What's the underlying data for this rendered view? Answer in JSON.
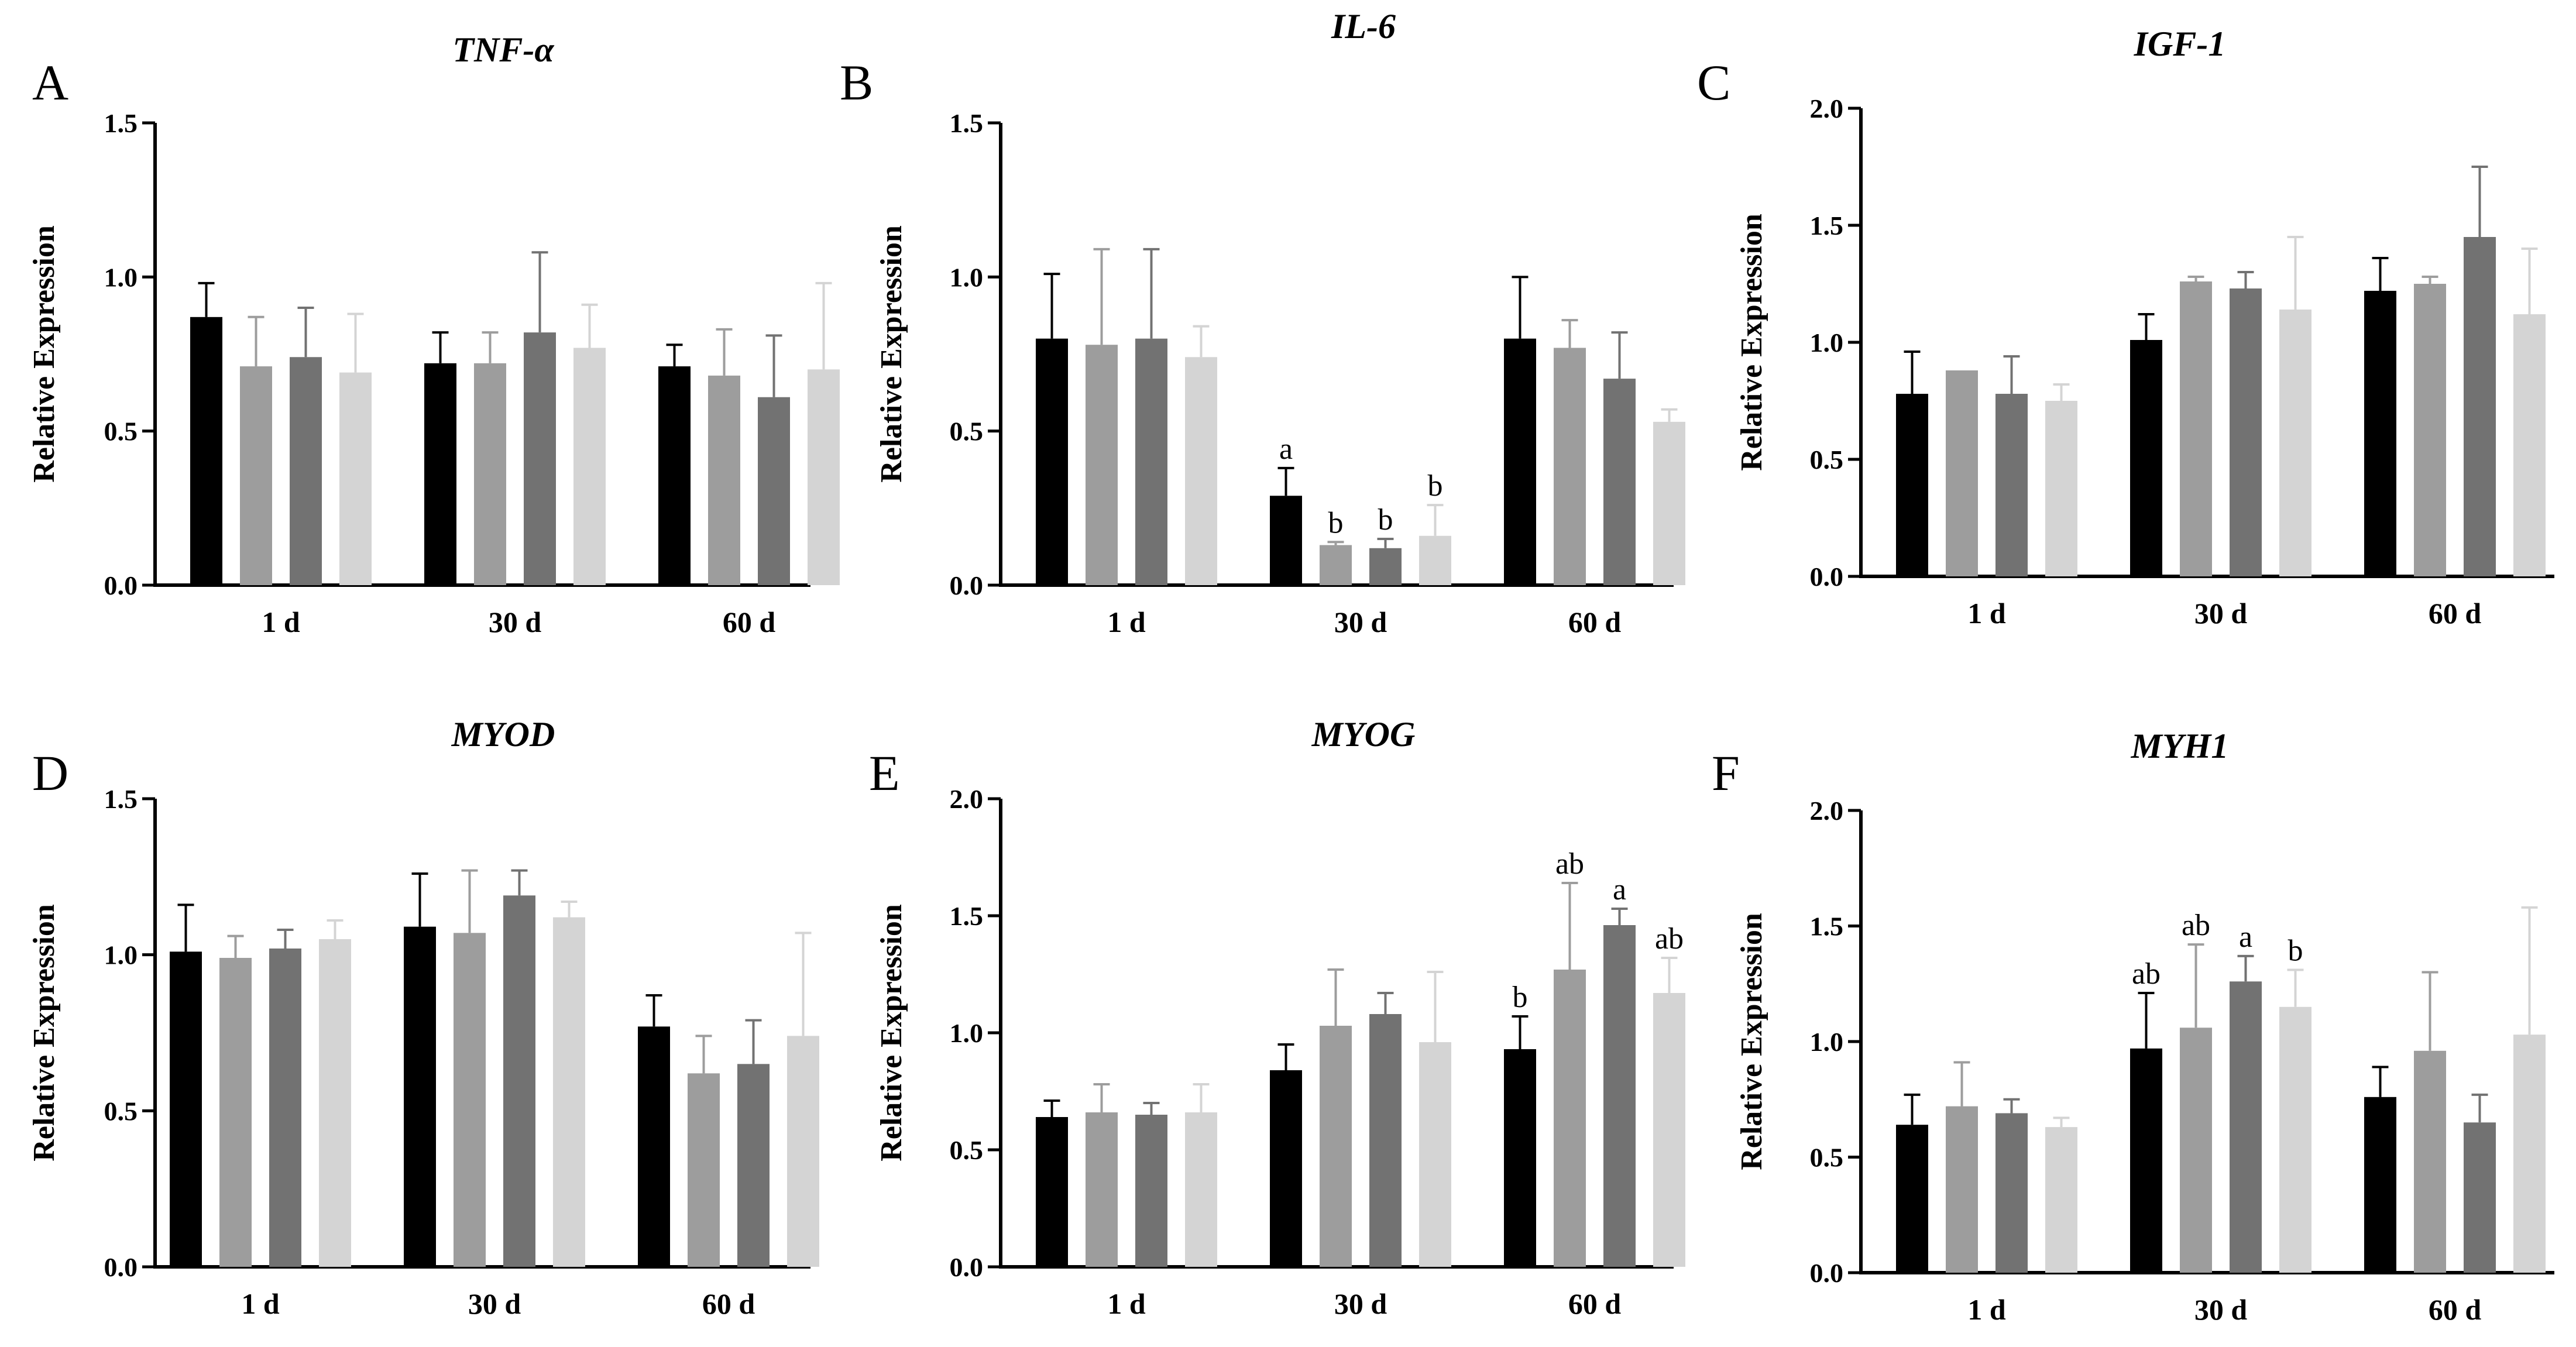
{
  "colors": [
    "#000000",
    "#9d9d9d",
    "#727272",
    "#d4d4d4"
  ],
  "chart_data": [
    {
      "type": "bar",
      "panel": "A",
      "title": "TNF-α",
      "ylabel": "Relative Expression",
      "categories": [
        "1 d",
        "30 d",
        "60 d"
      ],
      "ylim": [
        0,
        1.5
      ],
      "yticks": [
        "0.0",
        "0.5",
        "1.0",
        "1.5"
      ],
      "series": [
        {
          "values": [
            0.87,
            0.72,
            0.71
          ],
          "errors": [
            0.11,
            0.1,
            0.07
          ],
          "labels": [
            "",
            "",
            ""
          ]
        },
        {
          "values": [
            0.71,
            0.72,
            0.68
          ],
          "errors": [
            0.16,
            0.1,
            0.15
          ],
          "labels": [
            "",
            "",
            ""
          ]
        },
        {
          "values": [
            0.74,
            0.82,
            0.61
          ],
          "errors": [
            0.16,
            0.26,
            0.2
          ],
          "labels": [
            "",
            "",
            ""
          ]
        },
        {
          "values": [
            0.69,
            0.77,
            0.7
          ],
          "errors": [
            0.19,
            0.14,
            0.28
          ],
          "labels": [
            "",
            "",
            ""
          ]
        }
      ]
    },
    {
      "type": "bar",
      "panel": "B",
      "title": "IL-6",
      "ylabel": "Relative Expression",
      "categories": [
        "1 d",
        "30 d",
        "60 d"
      ],
      "ylim": [
        0,
        1.5
      ],
      "yticks": [
        "0.0",
        "0.5",
        "1.0",
        "1.5"
      ],
      "series": [
        {
          "values": [
            0.8,
            0.29,
            0.8
          ],
          "errors": [
            0.21,
            0.09,
            0.2
          ],
          "labels": [
            "",
            "a",
            ""
          ]
        },
        {
          "values": [
            0.78,
            0.13,
            0.77
          ],
          "errors": [
            0.31,
            0.01,
            0.09
          ],
          "labels": [
            "",
            "b",
            ""
          ]
        },
        {
          "values": [
            0.8,
            0.12,
            0.67
          ],
          "errors": [
            0.29,
            0.03,
            0.15
          ],
          "labels": [
            "",
            "b",
            ""
          ]
        },
        {
          "values": [
            0.74,
            0.16,
            0.53
          ],
          "errors": [
            0.1,
            0.1,
            0.04
          ],
          "labels": [
            "",
            "b",
            ""
          ]
        }
      ]
    },
    {
      "type": "bar",
      "panel": "C",
      "title": "IGF-1",
      "ylabel": "Relative Expression",
      "categories": [
        "1 d",
        "30 d",
        "60 d"
      ],
      "ylim": [
        0,
        2.0
      ],
      "yticks": [
        "0.0",
        "0.5",
        "1.0",
        "1.5",
        "2.0"
      ],
      "series": [
        {
          "values": [
            0.78,
            1.01,
            1.22
          ],
          "errors": [
            0.18,
            0.11,
            0.14
          ],
          "labels": [
            "",
            "",
            ""
          ]
        },
        {
          "values": [
            0.88,
            1.26,
            1.25
          ],
          "errors": [
            0.0,
            0.02,
            0.03
          ],
          "labels": [
            "",
            "",
            ""
          ]
        },
        {
          "values": [
            0.78,
            1.23,
            1.45
          ],
          "errors": [
            0.16,
            0.07,
            0.3
          ],
          "labels": [
            "",
            "",
            ""
          ]
        },
        {
          "values": [
            0.75,
            1.14,
            1.12
          ],
          "errors": [
            0.07,
            0.31,
            0.28
          ],
          "labels": [
            "",
            "",
            ""
          ]
        }
      ]
    },
    {
      "type": "bar",
      "panel": "D",
      "title": "MYOD",
      "ylabel": "Relative Expression",
      "categories": [
        "1 d",
        "30 d",
        "60 d"
      ],
      "ylim": [
        0,
        1.5
      ],
      "yticks": [
        "0.0",
        "0.5",
        "1.0",
        "1.5"
      ],
      "series": [
        {
          "values": [
            1.01,
            1.09,
            0.77
          ],
          "errors": [
            0.15,
            0.17,
            0.1
          ],
          "labels": [
            "",
            "",
            ""
          ]
        },
        {
          "values": [
            0.99,
            1.07,
            0.62
          ],
          "errors": [
            0.07,
            0.2,
            0.12
          ],
          "labels": [
            "",
            "",
            ""
          ]
        },
        {
          "values": [
            1.02,
            1.19,
            0.65
          ],
          "errors": [
            0.06,
            0.08,
            0.14
          ],
          "labels": [
            "",
            "",
            ""
          ]
        },
        {
          "values": [
            1.05,
            1.12,
            0.74
          ],
          "errors": [
            0.06,
            0.05,
            0.33
          ],
          "labels": [
            "",
            "",
            ""
          ]
        }
      ]
    },
    {
      "type": "bar",
      "panel": "E",
      "title": "MYOG",
      "ylabel": "Relative Expression",
      "categories": [
        "1 d",
        "30 d",
        "60 d"
      ],
      "ylim": [
        0,
        2.0
      ],
      "yticks": [
        "0.0",
        "0.5",
        "1.0",
        "1.5",
        "2.0"
      ],
      "series": [
        {
          "values": [
            0.64,
            0.84,
            0.93
          ],
          "errors": [
            0.07,
            0.11,
            0.14
          ],
          "labels": [
            "",
            "",
            "b"
          ]
        },
        {
          "values": [
            0.66,
            1.03,
            1.27
          ],
          "errors": [
            0.12,
            0.24,
            0.37
          ],
          "labels": [
            "",
            "",
            "ab"
          ]
        },
        {
          "values": [
            0.65,
            1.08,
            1.46
          ],
          "errors": [
            0.05,
            0.09,
            0.07
          ],
          "labels": [
            "",
            "",
            "a"
          ]
        },
        {
          "values": [
            0.66,
            0.96,
            1.17
          ],
          "errors": [
            0.12,
            0.3,
            0.15
          ],
          "labels": [
            "",
            "",
            "ab"
          ]
        }
      ]
    },
    {
      "type": "bar",
      "panel": "F",
      "title": "MYH1",
      "ylabel": "Relative Expression",
      "categories": [
        "1 d",
        "30 d",
        "60 d"
      ],
      "ylim": [
        0,
        2.0
      ],
      "yticks": [
        "0.0",
        "0.5",
        "1.0",
        "1.5",
        "2.0"
      ],
      "series": [
        {
          "values": [
            0.64,
            0.97,
            0.76
          ],
          "errors": [
            0.13,
            0.24,
            0.13
          ],
          "labels": [
            "",
            "ab",
            ""
          ]
        },
        {
          "values": [
            0.72,
            1.06,
            0.96
          ],
          "errors": [
            0.19,
            0.36,
            0.34
          ],
          "labels": [
            "",
            "ab",
            ""
          ]
        },
        {
          "values": [
            0.69,
            1.26,
            0.65
          ],
          "errors": [
            0.06,
            0.11,
            0.12
          ],
          "labels": [
            "",
            "a",
            ""
          ]
        },
        {
          "values": [
            0.63,
            1.15,
            1.03
          ],
          "errors": [
            0.04,
            0.16,
            0.55
          ],
          "labels": [
            "",
            "b",
            ""
          ]
        }
      ]
    }
  ]
}
